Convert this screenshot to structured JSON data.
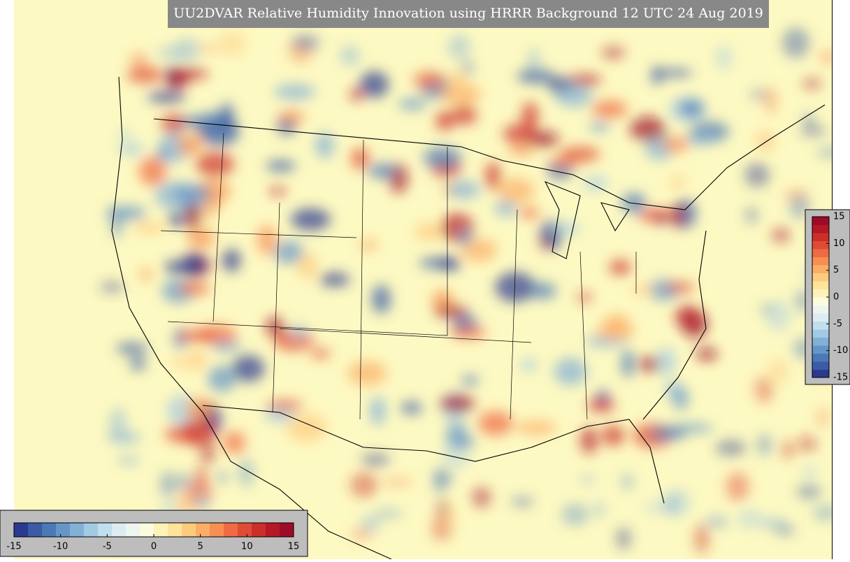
{
  "header": {
    "title": "UU2DVAR Relative Humidity Innovation using HRRR Background 12 UTC 24 Aug 2019"
  },
  "colorbar": {
    "range": [
      -15,
      15
    ],
    "ticks": [
      -15,
      -10,
      -5,
      0,
      5,
      10,
      15
    ],
    "colors": [
      "#2b3990",
      "#3b5ba5",
      "#4b79b6",
      "#6596c7",
      "#83b1d6",
      "#a3cae3",
      "#c2deec",
      "#dcecf2",
      "#eef5f0",
      "#fbfbe0",
      "#fdf2b8",
      "#fee39b",
      "#fdcb7f",
      "#fcae66",
      "#f88f52",
      "#ef6b43",
      "#e04b35",
      "#cc2e29",
      "#b51826",
      "#9e0b26"
    ]
  }
}
